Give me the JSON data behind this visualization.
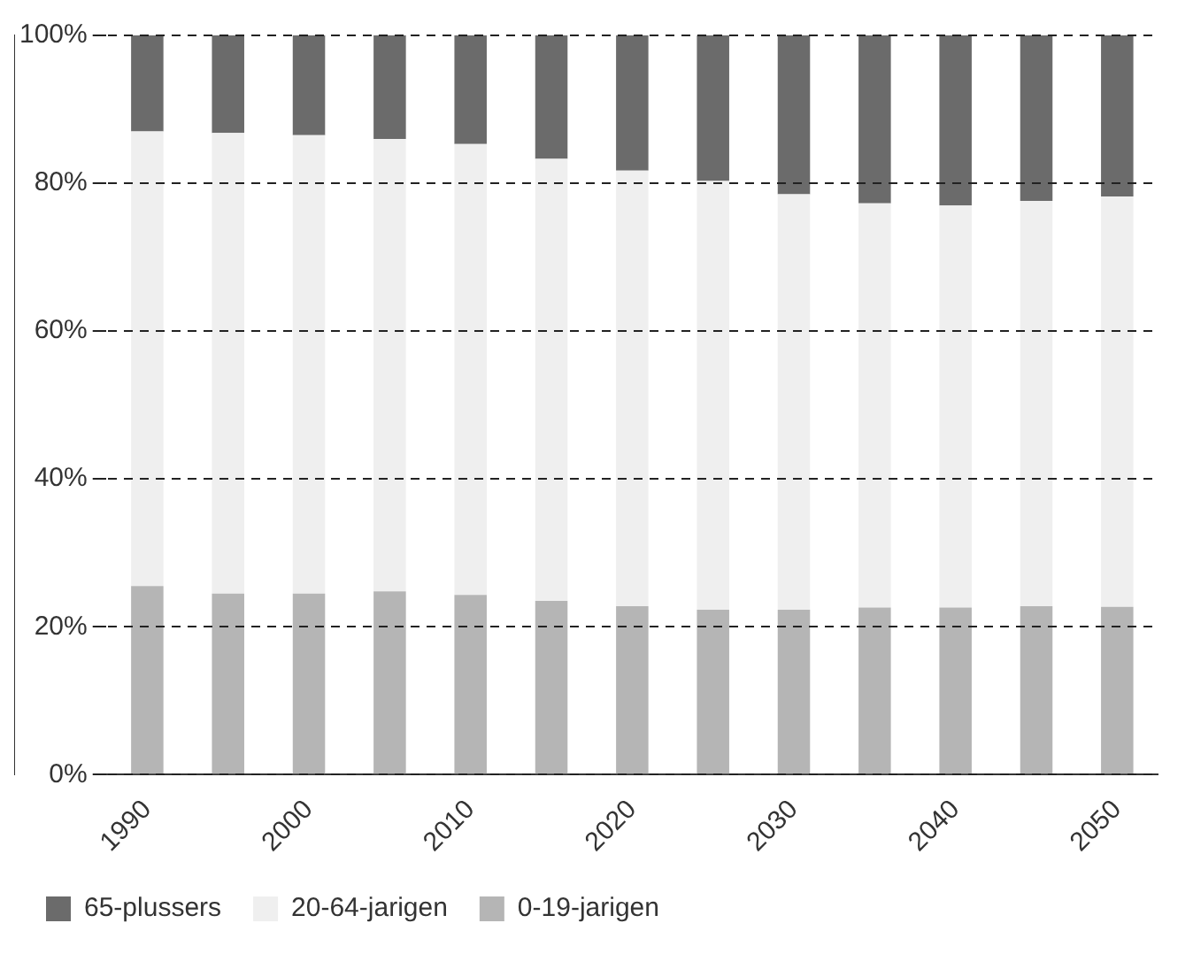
{
  "chart_data": {
    "type": "bar",
    "stacked": true,
    "categories": [
      "1990",
      null,
      "2000",
      null,
      "2010",
      null,
      "2020",
      null,
      "2030",
      null,
      "2040",
      null,
      "2050"
    ],
    "series": [
      {
        "name": "0-19-jarigen",
        "color": "#b5b5b5",
        "values": [
          25.5,
          24.5,
          24.5,
          24.8,
          24.3,
          23.5,
          22.8,
          22.3,
          22.3,
          22.6,
          22.6,
          22.8,
          22.7
        ]
      },
      {
        "name": "20-64-jarigen",
        "color": "#efefef",
        "values": [
          61.5,
          62.3,
          62,
          61.2,
          61,
          59.8,
          58.9,
          58,
          56.2,
          54.7,
          54.4,
          54.8,
          55.5
        ]
      },
      {
        "name": "65-plussers",
        "color": "#6b6b6b",
        "values": [
          13,
          13.2,
          13.5,
          14,
          14.7,
          16.7,
          18.3,
          19.7,
          21.5,
          22.7,
          23,
          22.4,
          21.8
        ]
      }
    ],
    "ylim": [
      0,
      100
    ],
    "yticks": [
      {
        "value": 0,
        "label": "0%"
      },
      {
        "value": 20,
        "label": "20%"
      },
      {
        "value": 40,
        "label": "40%"
      },
      {
        "value": 60,
        "label": "60%"
      },
      {
        "value": 80,
        "label": "80%"
      },
      {
        "value": 100,
        "label": "100%"
      }
    ],
    "grid": "y",
    "legend": "bottom left"
  }
}
